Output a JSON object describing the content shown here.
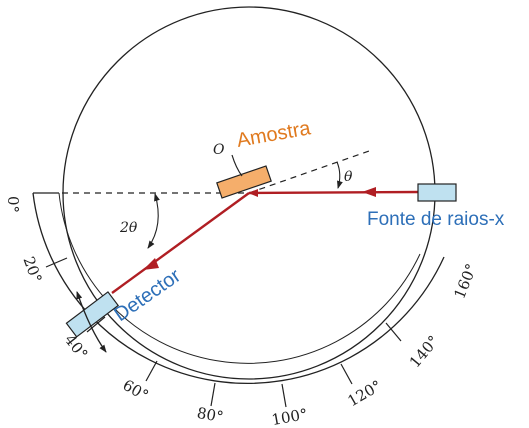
{
  "labels": {
    "sample": "Amostra",
    "source": "Fonte de raios-x",
    "detector": "Detector",
    "origin": "O",
    "theta": "θ",
    "two_theta": "2θ"
  },
  "scale": {
    "ticks": [
      "0°",
      "20°",
      "40°",
      "60°",
      "80°",
      "100°",
      "120°",
      "140°",
      "160°"
    ]
  },
  "colors": {
    "beam": "#b01e23",
    "sample": "#f5ae6b",
    "sample_label": "#e07a1f",
    "component": "#bfe1f0",
    "component_label": "#2d6fb8",
    "line": "#222222"
  }
}
